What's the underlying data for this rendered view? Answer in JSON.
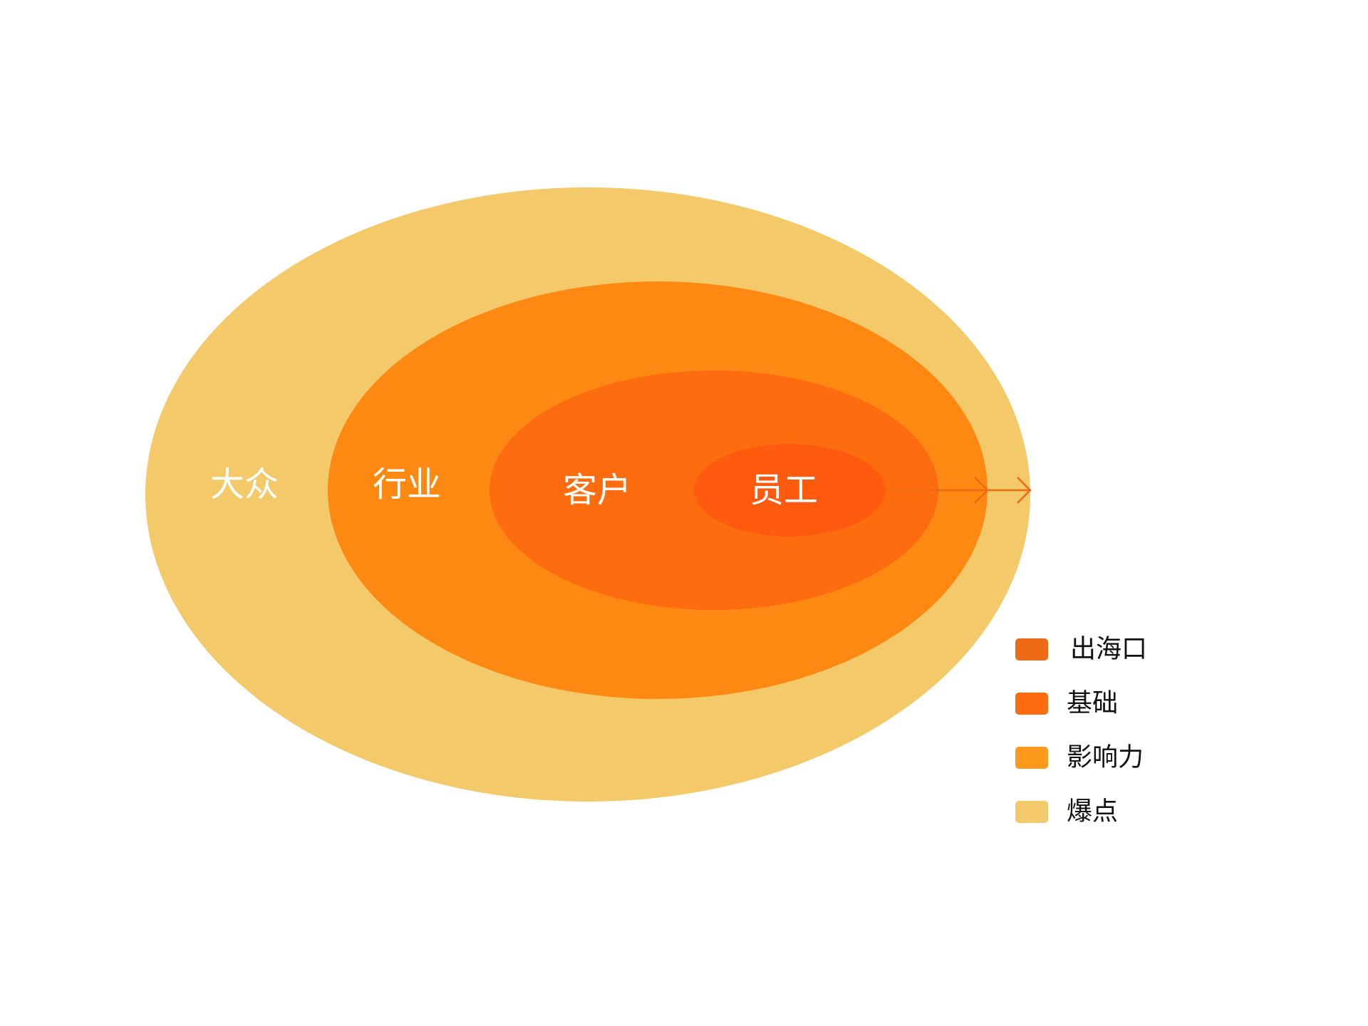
{
  "rings": [
    {
      "label": "大众",
      "color": "#F4C96A"
    },
    {
      "label": "行业",
      "color": "#FD8812"
    },
    {
      "label": "客户",
      "color": "#FE6C10"
    },
    {
      "label": "员工",
      "color": "#FF5A0E"
    }
  ],
  "arrow_color": "#EE6A15",
  "legend": [
    {
      "label": "出海口",
      "color": "#EE6A15"
    },
    {
      "label": "基础",
      "color": "#FD6C10"
    },
    {
      "label": "影响力",
      "color": "#FD9A1E"
    },
    {
      "label": "爆点",
      "color": "#F4C96A"
    }
  ]
}
